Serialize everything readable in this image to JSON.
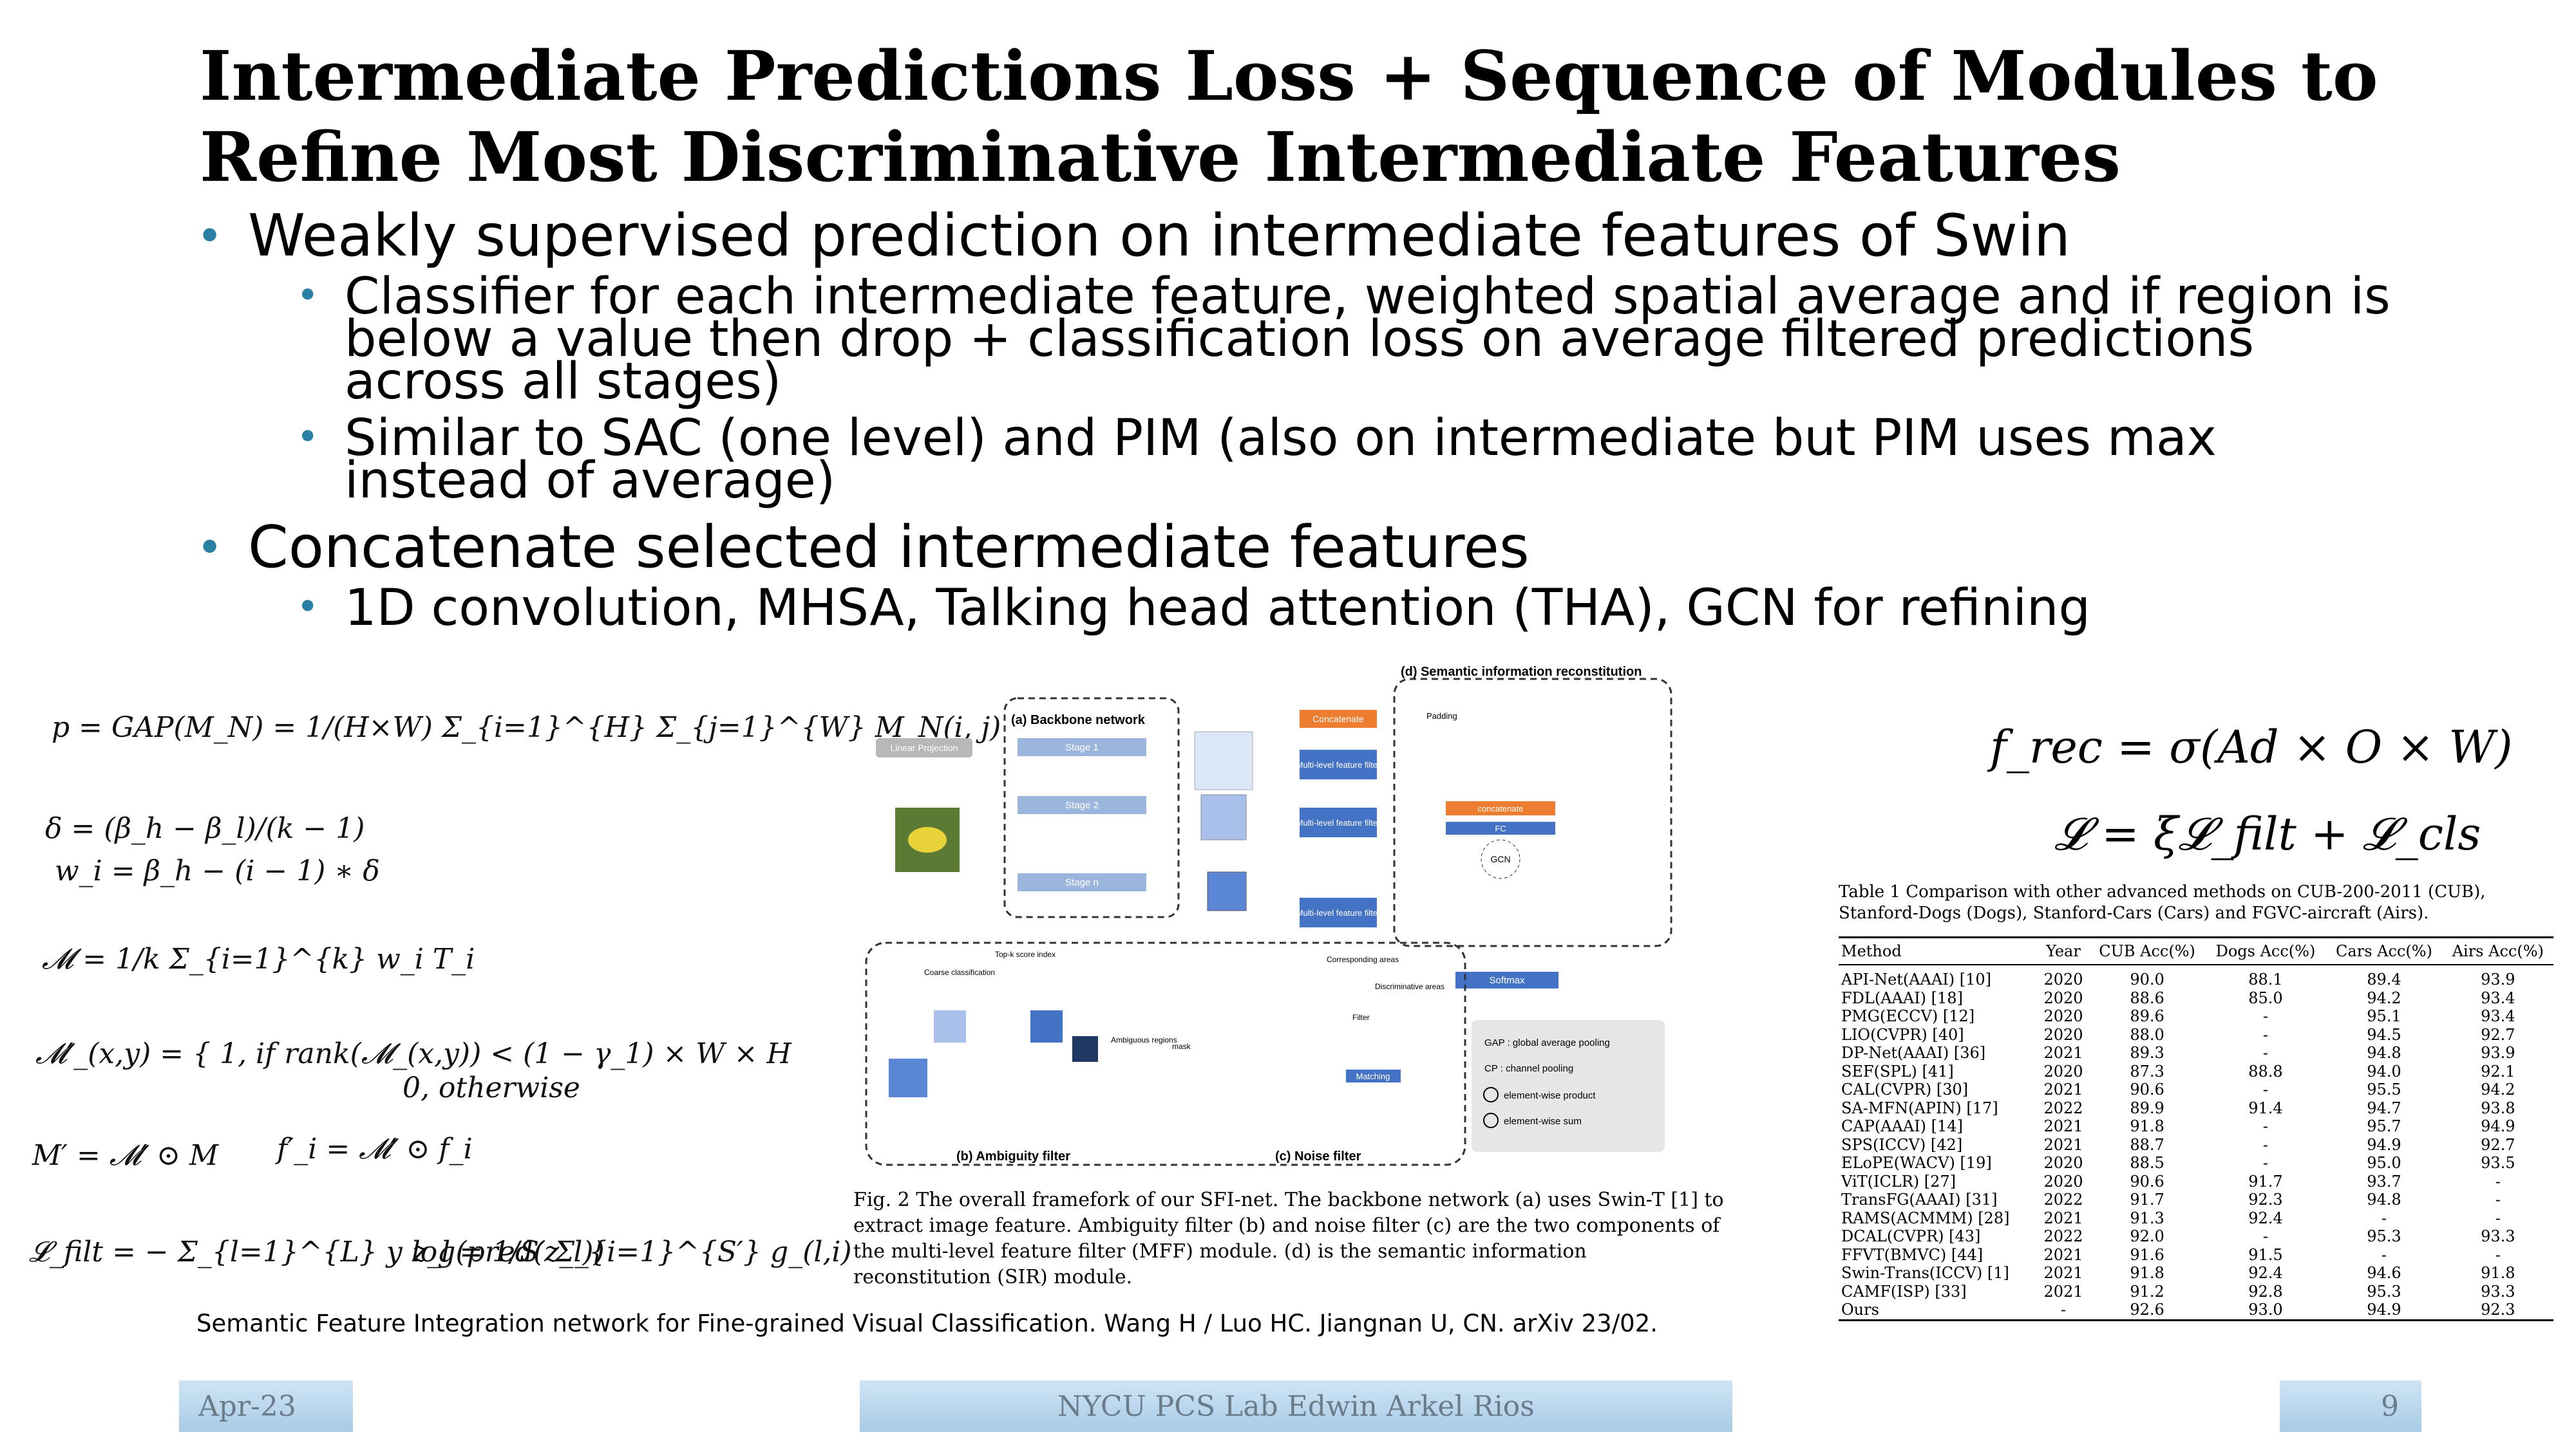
{
  "title": "Intermediate Predictions Loss + Sequence of Modules to Refine Most Discriminative Intermediate Features",
  "bullets": [
    {
      "text": "Weakly supervised prediction on intermediate features of Swin",
      "sub": [
        "Classifier for each intermediate feature, weighted spatial average and if region is below a value then drop + classification loss on average filtered predictions across all stages)",
        "Similar to SAC (one level) and PIM (also on intermediate but PIM uses max instead of average)"
      ]
    },
    {
      "text": "Concatenate selected intermediate features",
      "sub": [
        "1D convolution, MHSA, Talking head attention (THA), GCN for refining"
      ]
    }
  ],
  "equations": {
    "p": "p = GAP(M_N) = 1/(H×W) Σ_{i=1}^{H} Σ_{j=1}^{W} M_N(i, j)",
    "delta": "δ = (β_h − β_l)/(k − 1)",
    "w": "w_i = β_h − (i − 1) ∗ δ",
    "M": "𝓜 = 1/k Σ_{i=1}^{k} w_i T_i",
    "Mprime_a": "𝓜′_(x,y) = { 1,  if rank(𝓜_(x,y)) < (1 − γ_1) × W × H",
    "Mprime_b": "0,  otherwise",
    "Mp": "M′ = 𝓜′ ⊙ M",
    "fp": "f′_i = 𝓜′ ⊙ f_i",
    "Lfilt": "𝓛_filt = − Σ_{l=1}^{L} y log(pred(z_l))",
    "zl": "z_l = 1/S′ Σ_{i=1}^{S′} g_(l,i)",
    "frec": "f_rec = σ(Ad × O × W)",
    "L": "𝓛 = ξ𝓛_filt + 𝓛_cls"
  },
  "figure": {
    "labels": {
      "backbone": "(a) Backbone network",
      "sir": "(d) Semantic information reconstitution",
      "ambiguity": "(b) Ambiguity filter",
      "noise": "(c) Noise filter",
      "linear": "Linear Projection",
      "stage1": "Stage 1",
      "stage2": "Stage 2",
      "stagen": "Stage n",
      "concat": "Concatenate",
      "mff": "Multi-level feature filter",
      "padding": "Padding",
      "concatenate_small": "concatenate",
      "fc": "FC",
      "gcn": "GCN",
      "softmax": "Softmax",
      "top_k": "Top-k score index",
      "coarse": "Coarse classification",
      "ambiguous": "Ambiguous regions",
      "mask": "mask",
      "corresponding": "Corresponding areas",
      "discriminative": "Discriminative areas",
      "filter": "Filter",
      "matching": "Matching",
      "legend_gap": "GAP : global average pooling",
      "legend_cp": "CP : channel pooling",
      "legend_prod": "element-wise product",
      "legend_sum": "element-wise sum"
    },
    "caption": "Fig. 2  The overall framefork of our SFI-net. The backbone network (a) uses Swin-T [1] to extract image feature. Ambiguity filter (b) and noise filter (c) are the two components of the multi-level feature filter (MFF) module. (d) is the semantic information reconstitution (SIR) module."
  },
  "table": {
    "caption": "Table 1  Comparison with other advanced methods on CUB-200-2011 (CUB), Stanford-Dogs (Dogs), Stanford-Cars (Cars) and FGVC-aircraft (Airs).",
    "headers": [
      "Method",
      "Year",
      "CUB Acc(%)",
      "Dogs Acc(%)",
      "Cars Acc(%)",
      "Airs Acc(%)"
    ],
    "rows": [
      [
        "API-Net(AAAI) [10]",
        "2020",
        "90.0",
        "88.1",
        "89.4",
        "93.9"
      ],
      [
        "FDL(AAAI) [18]",
        "2020",
        "88.6",
        "85.0",
        "94.2",
        "93.4"
      ],
      [
        "PMG(ECCV) [12]",
        "2020",
        "89.6",
        "-",
        "95.1",
        "93.4"
      ],
      [
        "LIO(CVPR) [40]",
        "2020",
        "88.0",
        "-",
        "94.5",
        "92.7"
      ],
      [
        "DP-Net(AAAI) [36]",
        "2021",
        "89.3",
        "-",
        "94.8",
        "93.9"
      ],
      [
        "SEF(SPL) [41]",
        "2020",
        "87.3",
        "88.8",
        "94.0",
        "92.1"
      ],
      [
        "CAL(CVPR) [30]",
        "2021",
        "90.6",
        "-",
        "95.5",
        "94.2"
      ],
      [
        "SA-MFN(APIN) [17]",
        "2022",
        "89.9",
        "91.4",
        "94.7",
        "93.8"
      ],
      [
        "CAP(AAAI) [14]",
        "2021",
        "91.8",
        "-",
        "95.7",
        "94.9"
      ],
      [
        "SPS(ICCV) [42]",
        "2021",
        "88.7",
        "-",
        "94.9",
        "92.7"
      ],
      [
        "ELoPE(WACV) [19]",
        "2020",
        "88.5",
        "-",
        "95.0",
        "93.5"
      ],
      [
        "ViT(ICLR) [27]",
        "2020",
        "90.6",
        "91.7",
        "93.7",
        "-"
      ],
      [
        "TransFG(AAAI) [31]",
        "2022",
        "91.7",
        "92.3",
        "94.8",
        "-"
      ],
      [
        "RAMS(ACMMM) [28]",
        "2021",
        "91.3",
        "92.4",
        "-",
        "-"
      ],
      [
        "DCAL(CVPR) [43]",
        "2022",
        "92.0",
        "-",
        "95.3",
        "93.3"
      ],
      [
        "FFVT(BMVC) [44]",
        "2021",
        "91.6",
        "91.5",
        "-",
        "-"
      ],
      [
        "Swin-Trans(ICCV) [1]",
        "2021",
        "91.8",
        "92.4",
        "94.6",
        "91.8"
      ],
      [
        "CAMF(ISP) [33]",
        "2021",
        "91.2",
        "92.8",
        "95.3",
        "93.3"
      ],
      [
        "Ours",
        "-",
        "92.6",
        "93.0",
        "94.9",
        "92.3"
      ]
    ]
  },
  "source_caption": "Semantic Feature Integration network for Fine-grained Visual Classification. Wang H / Luo HC. Jiangnan U, CN. arXiv 23/02.",
  "footer": {
    "date": "Apr-23",
    "center": "NYCU PCS Lab Edwin Arkel Rios",
    "page": "9"
  }
}
